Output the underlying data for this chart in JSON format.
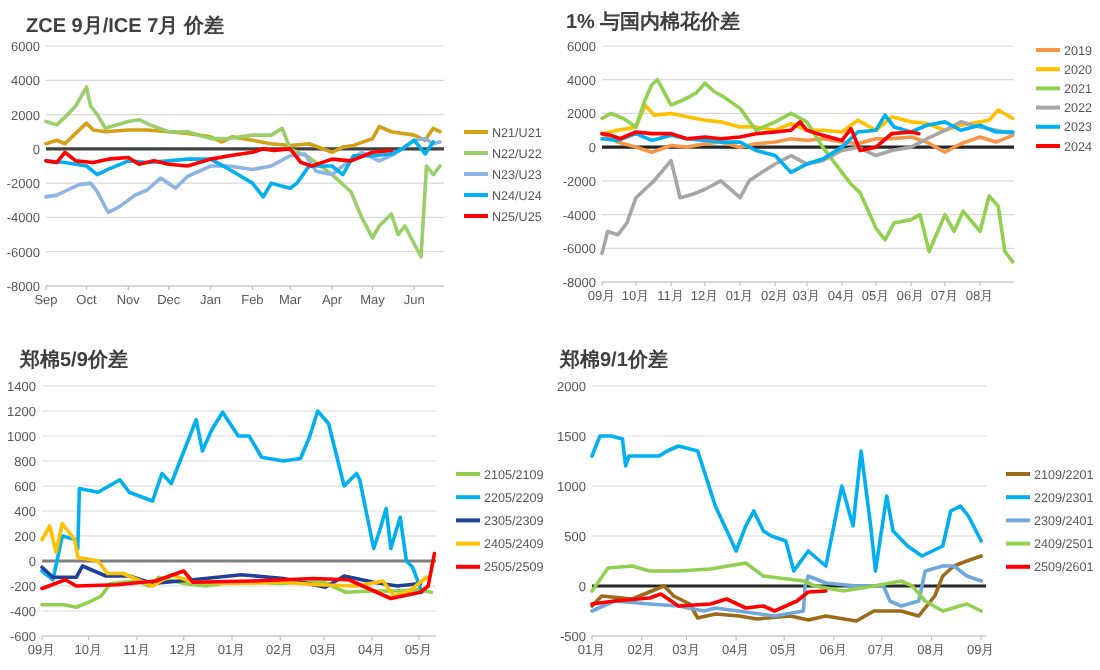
{
  "chart_data": [
    {
      "type": "line",
      "title": "ZCE 9月/ICE 7月 价差",
      "xlim": [
        "2020-09-01",
        "2021-06-23"
      ],
      "xticks": [
        {
          "value": "2020-09-01",
          "label": "Sep"
        },
        {
          "value": "2020-10-01",
          "label": "Oct"
        },
        {
          "value": "2020-11-01",
          "label": "Nov"
        },
        {
          "value": "2020-12-01",
          "label": "Dec"
        },
        {
          "value": "2021-01-01",
          "label": "Jan"
        },
        {
          "value": "2021-02-01",
          "label": "Feb"
        },
        {
          "value": "2021-03-01",
          "label": "Mar"
        },
        {
          "value": "2021-04-01",
          "label": "Apr"
        },
        {
          "value": "2021-05-01",
          "label": "May"
        },
        {
          "value": "2021-06-01",
          "label": "Jun"
        }
      ],
      "ylim": [
        -8000,
        6000
      ],
      "yticks": [
        -8000,
        -6000,
        -4000,
        -2000,
        0,
        2000,
        4000,
        6000
      ],
      "grid": "y",
      "legend": "right",
      "ref_lines": [
        {
          "axis": "y",
          "value": 0,
          "color": "#404040"
        }
      ],
      "series": [
        {
          "name": "N21/U21",
          "color": "#d4a017",
          "x": [
            "2020-09-01",
            "2020-09-09",
            "2020-09-15",
            "2020-09-23",
            "2020-10-01",
            "2020-10-06",
            "2020-10-15",
            "2020-11-01",
            "2020-11-15",
            "2020-12-01",
            "2020-12-15",
            "2021-01-01",
            "2021-01-09",
            "2021-01-17",
            "2021-02-01",
            "2021-02-15",
            "2021-03-01",
            "2021-03-15",
            "2021-04-01",
            "2021-04-09",
            "2021-04-17",
            "2021-05-01",
            "2021-05-06",
            "2021-05-15",
            "2021-06-01",
            "2021-06-09",
            "2021-06-15",
            "2021-06-20"
          ],
          "values": [
            300,
            500,
            300,
            900,
            1500,
            1100,
            1000,
            1100,
            1100,
            1000,
            900,
            700,
            400,
            700,
            500,
            300,
            200,
            300,
            -200,
            100,
            200,
            600,
            1300,
            1000,
            800,
            500,
            1200,
            1000
          ]
        },
        {
          "name": "N22/U22",
          "color": "#9bcf6b",
          "x": [
            "2020-09-01",
            "2020-09-09",
            "2020-09-17",
            "2020-09-23",
            "2020-10-01",
            "2020-10-04",
            "2020-10-09",
            "2020-10-15",
            "2020-11-01",
            "2020-11-09",
            "2020-11-17",
            "2020-12-01",
            "2020-12-15",
            "2021-01-01",
            "2021-01-15",
            "2021-02-01",
            "2021-02-15",
            "2021-02-23",
            "2021-03-01",
            "2021-03-15",
            "2021-04-01",
            "2021-04-15",
            "2021-04-23",
            "2021-05-01",
            "2021-05-06",
            "2021-05-15",
            "2021-05-20",
            "2021-05-25",
            "2021-06-04",
            "2021-06-06",
            "2021-06-10",
            "2021-06-15",
            "2021-06-17",
            "2021-06-20"
          ],
          "values": [
            1600,
            1400,
            2000,
            2500,
            3600,
            2500,
            2000,
            1200,
            1600,
            1700,
            1400,
            1000,
            1000,
            600,
            600,
            800,
            800,
            1200,
            0,
            -500,
            -1500,
            -2500,
            -4000,
            -5200,
            -4500,
            -3800,
            -5000,
            -4500,
            -6000,
            -6300,
            -1000,
            -1500,
            -1300,
            -1000
          ]
        },
        {
          "name": "N23/U23",
          "color": "#8db4e2",
          "x": [
            "2020-09-01",
            "2020-09-09",
            "2020-09-17",
            "2020-09-25",
            "2020-10-04",
            "2020-10-09",
            "2020-10-17",
            "2020-10-25",
            "2020-11-06",
            "2020-11-15",
            "2020-11-25",
            "2020-12-06",
            "2020-12-15",
            "2021-01-01",
            "2021-01-15",
            "2021-02-01",
            "2021-02-15",
            "2021-03-01",
            "2021-03-12",
            "2021-03-20",
            "2021-04-01",
            "2021-04-12",
            "2021-04-23",
            "2021-05-06",
            "2021-05-17",
            "2021-06-01",
            "2021-06-09",
            "2021-06-15",
            "2021-06-20"
          ],
          "values": [
            -2800,
            -2700,
            -2400,
            -2100,
            -2000,
            -2500,
            -3700,
            -3400,
            -2700,
            -2400,
            -1700,
            -2300,
            -1600,
            -1000,
            -1000,
            -1200,
            -1000,
            -400,
            -300,
            -1300,
            -1500,
            -800,
            -200,
            -700,
            -300,
            500,
            600,
            300,
            400
          ]
        },
        {
          "name": "N24/U24",
          "color": "#00b0f0",
          "x": [
            "2020-09-01",
            "2020-09-15",
            "2020-10-01",
            "2020-10-09",
            "2020-10-17",
            "2020-11-01",
            "2020-11-15",
            "2020-12-01",
            "2020-12-15",
            "2021-01-01",
            "2021-01-15",
            "2021-02-01",
            "2021-02-09",
            "2021-02-15",
            "2021-03-01",
            "2021-03-06",
            "2021-03-15",
            "2021-04-01",
            "2021-04-09",
            "2021-04-17",
            "2021-05-01",
            "2021-05-15",
            "2021-05-23",
            "2021-06-01",
            "2021-06-09",
            "2021-06-15"
          ],
          "values": [
            -700,
            -800,
            -1000,
            -1500,
            -1200,
            -700,
            -800,
            -700,
            -600,
            -600,
            -1200,
            -2000,
            -2800,
            -2000,
            -2300,
            -2000,
            -1000,
            -1000,
            -1500,
            -400,
            -400,
            -300,
            0,
            500,
            -300,
            400
          ]
        },
        {
          "name": "N25/U25",
          "color": "#ff0000",
          "x": [
            "2020-09-01",
            "2020-09-09",
            "2020-09-15",
            "2020-09-23",
            "2020-10-06",
            "2020-10-17",
            "2020-11-01",
            "2020-11-09",
            "2020-11-20",
            "2020-12-01",
            "2020-12-15",
            "2021-01-01",
            "2021-01-15",
            "2021-02-01",
            "2021-02-09",
            "2021-02-17",
            "2021-03-01",
            "2021-03-09",
            "2021-03-17",
            "2021-04-01",
            "2021-04-15",
            "2021-05-01",
            "2021-05-15"
          ],
          "values": [
            -700,
            -800,
            -200,
            -700,
            -800,
            -600,
            -500,
            -900,
            -700,
            -900,
            -1000,
            -600,
            -400,
            -200,
            0,
            -100,
            0,
            -800,
            -1000,
            -600,
            -700,
            -200,
            -100
          ]
        }
      ]
    },
    {
      "type": "line",
      "title": "1% 与国内棉花价差",
      "xlim": [
        "2020-09-01",
        "2021-08-31"
      ],
      "xticks": [
        {
          "value": "2020-09-01",
          "label": "09月"
        },
        {
          "value": "2020-10-01",
          "label": "10月"
        },
        {
          "value": "2020-11-01",
          "label": "11月"
        },
        {
          "value": "2020-12-01",
          "label": "12月"
        },
        {
          "value": "2021-01-01",
          "label": "01月"
        },
        {
          "value": "2021-02-01",
          "label": "02月"
        },
        {
          "value": "2021-03-01",
          "label": "03月"
        },
        {
          "value": "2021-04-01",
          "label": "04月"
        },
        {
          "value": "2021-05-01",
          "label": "05月"
        },
        {
          "value": "2021-06-01",
          "label": "06月"
        },
        {
          "value": "2021-07-01",
          "label": "07月"
        },
        {
          "value": "2021-08-01",
          "label": "08月"
        }
      ],
      "ylim": [
        -8000,
        6000
      ],
      "yticks": [
        -8000,
        -6000,
        -4000,
        -2000,
        0,
        2000,
        4000,
        6000
      ],
      "grid": "y",
      "legend": "right",
      "ref_lines": [
        {
          "axis": "y",
          "value": 0,
          "color": "#262626"
        }
      ],
      "series": [
        {
          "name": "2019",
          "color": "#f79646",
          "x": [
            "2020-09-01",
            "2020-09-15",
            "2020-10-01",
            "2020-10-15",
            "2020-11-01",
            "2020-11-15",
            "2020-12-01",
            "2020-12-15",
            "2021-01-01",
            "2021-01-15",
            "2021-02-01",
            "2021-02-15",
            "2021-03-01",
            "2021-03-15",
            "2021-04-01",
            "2021-04-15",
            "2021-05-01",
            "2021-05-15",
            "2021-06-01",
            "2021-06-15",
            "2021-07-01",
            "2021-07-15",
            "2021-08-01",
            "2021-08-15",
            "2021-08-30"
          ],
          "values": [
            800,
            300,
            0,
            -300,
            100,
            0,
            200,
            300,
            0,
            200,
            300,
            500,
            400,
            500,
            300,
            200,
            500,
            500,
            600,
            300,
            -300,
            200,
            600,
            300,
            700
          ]
        },
        {
          "name": "2020",
          "color": "#ffc000",
          "x": [
            "2020-09-01",
            "2020-09-15",
            "2020-10-01",
            "2020-10-09",
            "2020-10-17",
            "2020-11-01",
            "2020-11-15",
            "2020-12-01",
            "2020-12-15",
            "2021-01-01",
            "2021-01-15",
            "2021-02-01",
            "2021-02-15",
            "2021-03-01",
            "2021-03-15",
            "2021-04-01",
            "2021-04-15",
            "2021-05-01",
            "2021-05-15",
            "2021-06-01",
            "2021-06-15",
            "2021-07-01",
            "2021-07-15",
            "2021-08-01",
            "2021-08-09",
            "2021-08-17",
            "2021-08-30"
          ],
          "values": [
            800,
            1000,
            1200,
            2500,
            1900,
            2000,
            1800,
            1600,
            1500,
            1200,
            1200,
            1000,
            1400,
            1000,
            1000,
            900,
            1600,
            1000,
            1800,
            1500,
            1400,
            1000,
            1300,
            1500,
            1600,
            2200,
            1700
          ]
        },
        {
          "name": "2021",
          "color": "#92d050",
          "x": [
            "2020-09-01",
            "2020-09-09",
            "2020-09-20",
            "2020-10-01",
            "2020-10-09",
            "2020-10-15",
            "2020-10-20",
            "2020-11-01",
            "2020-11-12",
            "2020-11-23",
            "2020-12-01",
            "2020-12-09",
            "2020-12-17",
            "2021-01-01",
            "2021-01-15",
            "2021-02-01",
            "2021-02-15",
            "2021-03-01",
            "2021-03-15",
            "2021-04-01",
            "2021-04-09",
            "2021-04-17",
            "2021-05-01",
            "2021-05-09",
            "2021-05-17",
            "2021-06-01",
            "2021-06-09",
            "2021-06-17",
            "2021-07-01",
            "2021-07-09",
            "2021-07-17",
            "2021-08-01",
            "2021-08-09",
            "2021-08-17",
            "2021-08-23",
            "2021-08-30"
          ],
          "values": [
            1700,
            2000,
            1700,
            1200,
            2800,
            3700,
            4000,
            2500,
            2800,
            3200,
            3800,
            3300,
            3000,
            2300,
            1000,
            1500,
            2000,
            1500,
            0,
            -1500,
            -2200,
            -2700,
            -4800,
            -5500,
            -4500,
            -4300,
            -4000,
            -6200,
            -4000,
            -5000,
            -3800,
            -5000,
            -2900,
            -3500,
            -6200,
            -6800
          ]
        },
        {
          "name": "2022",
          "color": "#a6a6a6",
          "x": [
            "2020-09-01",
            "2020-09-06",
            "2020-09-15",
            "2020-09-23",
            "2020-10-01",
            "2020-10-09",
            "2020-10-17",
            "2020-11-01",
            "2020-11-09",
            "2020-11-20",
            "2020-12-01",
            "2020-12-15",
            "2021-01-01",
            "2021-01-09",
            "2021-01-20",
            "2021-02-01",
            "2021-02-15",
            "2021-03-01",
            "2021-03-15",
            "2021-04-01",
            "2021-04-15",
            "2021-05-01",
            "2021-05-15",
            "2021-06-01",
            "2021-06-15",
            "2021-07-01",
            "2021-07-15",
            "2021-08-01",
            "2021-08-15",
            "2021-08-30"
          ],
          "values": [
            -6300,
            -5000,
            -5200,
            -4500,
            -3000,
            -2500,
            -2000,
            -800,
            -3000,
            -2800,
            -2500,
            -2000,
            -3000,
            -2000,
            -1500,
            -1000,
            -500,
            -1000,
            -800,
            -200,
            0,
            -500,
            -200,
            0,
            500,
            1000,
            1500,
            1200,
            1000,
            800
          ]
        },
        {
          "name": "2023",
          "color": "#00b0f0",
          "x": [
            "2020-09-01",
            "2020-09-15",
            "2020-10-01",
            "2020-10-15",
            "2020-11-01",
            "2020-11-15",
            "2020-12-01",
            "2020-12-15",
            "2021-01-01",
            "2021-01-15",
            "2021-02-01",
            "2021-02-15",
            "2021-03-01",
            "2021-03-15",
            "2021-04-01",
            "2021-04-15",
            "2021-05-01",
            "2021-05-09",
            "2021-05-17",
            "2021-06-01",
            "2021-06-15",
            "2021-07-01",
            "2021-07-15",
            "2021-08-01",
            "2021-08-15",
            "2021-08-30"
          ],
          "values": [
            500,
            400,
            800,
            400,
            700,
            500,
            400,
            300,
            300,
            -200,
            -500,
            -1500,
            -1000,
            -700,
            0,
            900,
            1000,
            1900,
            1200,
            900,
            1300,
            1500,
            1000,
            1300,
            900,
            900
          ]
        },
        {
          "name": "2024",
          "color": "#ff0000",
          "x": [
            "2020-09-01",
            "2020-09-09",
            "2020-09-17",
            "2020-10-01",
            "2020-10-15",
            "2020-11-01",
            "2020-11-15",
            "2020-12-01",
            "2020-12-15",
            "2021-01-01",
            "2021-01-15",
            "2021-02-01",
            "2021-02-15",
            "2021-02-23",
            "2021-03-01",
            "2021-03-15",
            "2021-04-01",
            "2021-04-09",
            "2021-04-17",
            "2021-05-01",
            "2021-05-15",
            "2021-06-01",
            "2021-06-08"
          ],
          "values": [
            800,
            700,
            500,
            900,
            800,
            800,
            500,
            600,
            500,
            600,
            800,
            900,
            1000,
            1500,
            1000,
            700,
            400,
            1100,
            -200,
            0,
            800,
            900,
            800
          ]
        }
      ]
    },
    {
      "type": "line",
      "title": "郑棉5/9价差",
      "xlim": [
        "2020-09-01",
        "2021-05-12"
      ],
      "xticks": [
        {
          "value": "2020-09-01",
          "label": "09月"
        },
        {
          "value": "2020-10-01",
          "label": "10月"
        },
        {
          "value": "2020-11-01",
          "label": "11月"
        },
        {
          "value": "2020-12-01",
          "label": "12月"
        },
        {
          "value": "2021-01-01",
          "label": "01月"
        },
        {
          "value": "2021-02-01",
          "label": "02月"
        },
        {
          "value": "2021-03-01",
          "label": "03月"
        },
        {
          "value": "2021-04-01",
          "label": "04月"
        },
        {
          "value": "2021-05-01",
          "label": "05月"
        }
      ],
      "ylim": [
        -600,
        1400
      ],
      "yticks": [
        -600,
        -400,
        -200,
        0,
        200,
        400,
        600,
        800,
        1000,
        1200,
        1400
      ],
      "grid": "y",
      "legend": "right",
      "ref_lines": [
        {
          "axis": "y",
          "value": 0,
          "color": "#7f7f7f"
        }
      ],
      "series": [
        {
          "name": "2105/2109",
          "color": "#92d050",
          "x": [
            "2020-09-01",
            "2020-09-15",
            "2020-09-23",
            "2020-10-01",
            "2020-10-09",
            "2020-10-15",
            "2020-11-01",
            "2020-11-09",
            "2020-11-15",
            "2020-12-01",
            "2020-12-15",
            "2021-01-01",
            "2021-01-15",
            "2021-02-01",
            "2021-02-15",
            "2021-03-01",
            "2021-03-15",
            "2021-04-01",
            "2021-04-15",
            "2021-05-01",
            "2021-05-09"
          ],
          "values": [
            -350,
            -350,
            -370,
            -330,
            -280,
            -180,
            -160,
            -200,
            -130,
            -180,
            -200,
            -170,
            -170,
            -180,
            -170,
            -170,
            -250,
            -240,
            -240,
            -230,
            -250
          ]
        },
        {
          "name": "2205/2209",
          "color": "#00b0f0",
          "x": [
            "2020-09-01",
            "2020-09-08",
            "2020-09-14",
            "2020-09-23",
            "2020-09-24",
            "2020-09-25",
            "2020-10-07",
            "2020-10-21",
            "2020-10-27",
            "2020-11-11",
            "2020-11-17",
            "2020-11-23",
            "2020-12-09",
            "2020-12-13",
            "2020-12-19",
            "2020-12-26",
            "2021-01-05",
            "2021-01-12",
            "2021-01-20",
            "2021-02-03",
            "2021-02-14",
            "2021-02-20",
            "2021-02-25",
            "2021-03-04",
            "2021-03-09",
            "2021-03-14",
            "2021-03-22",
            "2021-03-24",
            "2021-04-02",
            "2021-04-06",
            "2021-04-10",
            "2021-04-13",
            "2021-04-19",
            "2021-04-23",
            "2021-04-27",
            "2021-05-03"
          ],
          "values": [
            -80,
            -150,
            200,
            170,
            100,
            580,
            550,
            650,
            550,
            480,
            700,
            620,
            1130,
            880,
            1050,
            1190,
            1000,
            1000,
            830,
            800,
            820,
            1000,
            1200,
            1100,
            850,
            600,
            700,
            650,
            100,
            250,
            420,
            100,
            350,
            0,
            -50,
            -250
          ]
        },
        {
          "name": "2305/2309",
          "color": "#1f3f99",
          "x": [
            "2020-09-01",
            "2020-09-08",
            "2020-09-23",
            "2020-09-27",
            "2020-10-12",
            "2020-10-27",
            "2020-11-11",
            "2020-12-07",
            "2021-01-07",
            "2021-02-03",
            "2021-03-02",
            "2021-03-14",
            "2021-04-02",
            "2021-04-17",
            "2021-05-02"
          ],
          "values": [
            -50,
            -130,
            -130,
            -40,
            -120,
            -120,
            -180,
            -150,
            -110,
            -140,
            -210,
            -120,
            -170,
            -200,
            -180
          ]
        },
        {
          "name": "2405/2409",
          "color": "#ffc000",
          "x": [
            "2020-09-01",
            "2020-09-06",
            "2020-09-10",
            "2020-09-14",
            "2020-09-22",
            "2020-09-24",
            "2020-10-07",
            "2020-10-13",
            "2020-10-23",
            "2020-11-11",
            "2020-11-23",
            "2020-12-07",
            "2021-01-03",
            "2021-02-03",
            "2021-02-25",
            "2021-03-22",
            "2021-04-08",
            "2021-04-15",
            "2021-04-25",
            "2021-05-06"
          ],
          "values": [
            170,
            280,
            70,
            300,
            170,
            30,
            0,
            -100,
            -100,
            -200,
            -110,
            -170,
            -180,
            -170,
            -190,
            -200,
            -160,
            -280,
            -240,
            -130
          ]
        },
        {
          "name": "2505/2509",
          "color": "#ff0000",
          "x": [
            "2020-09-01",
            "2020-09-16",
            "2020-09-23",
            "2020-10-19",
            "2020-11-13",
            "2020-12-01",
            "2020-12-07",
            "2021-01-14",
            "2021-02-22",
            "2021-03-17",
            "2021-04-04",
            "2021-04-13",
            "2021-05-02",
            "2021-05-07",
            "2021-05-11"
          ],
          "values": [
            -220,
            -150,
            -200,
            -190,
            -160,
            -80,
            -170,
            -160,
            -140,
            -150,
            -250,
            -300,
            -250,
            -200,
            60
          ]
        }
      ]
    },
    {
      "type": "line",
      "title": "郑棉9/1价差",
      "xlim": [
        "2021-01-01",
        "2021-09-04"
      ],
      "xticks": [
        {
          "value": "2021-01-01",
          "label": "01月"
        },
        {
          "value": "2021-02-01",
          "label": "02月"
        },
        {
          "value": "2021-03-01",
          "label": "03月"
        },
        {
          "value": "2021-04-01",
          "label": "04月"
        },
        {
          "value": "2021-05-01",
          "label": "05月"
        },
        {
          "value": "2021-06-01",
          "label": "06月"
        },
        {
          "value": "2021-07-01",
          "label": "07月"
        },
        {
          "value": "2021-08-01",
          "label": "08月"
        },
        {
          "value": "2021-09-01",
          "label": "09月"
        }
      ],
      "ylim": [
        -500,
        2000
      ],
      "yticks": [
        -500,
        0,
        500,
        1000,
        1500,
        2000
      ],
      "grid": "y",
      "legend": "right",
      "ref_lines": [
        {
          "axis": "y",
          "value": 0,
          "color": "#262626"
        }
      ],
      "series": [
        {
          "name": "2109/2201",
          "color": "#9c6b1a",
          "x": [
            "2021-01-01",
            "2021-01-07",
            "2021-01-26",
            "2021-02-15",
            "2021-02-21",
            "2021-03-03",
            "2021-03-08",
            "2021-03-19",
            "2021-04-03",
            "2021-04-14",
            "2021-05-05",
            "2021-05-16",
            "2021-05-27",
            "2021-06-15",
            "2021-06-26",
            "2021-07-13",
            "2021-07-24",
            "2021-08-03",
            "2021-08-08",
            "2021-08-15",
            "2021-08-23",
            "2021-09-01"
          ],
          "values": [
            -200,
            -100,
            -130,
            0,
            -100,
            -180,
            -320,
            -280,
            -300,
            -330,
            -300,
            -340,
            -300,
            -350,
            -250,
            -250,
            -300,
            -100,
            100,
            200,
            250,
            300
          ]
        },
        {
          "name": "2209/2301",
          "color": "#00b0f0",
          "x": [
            "2021-01-01",
            "2021-01-06",
            "2021-01-13",
            "2021-01-20",
            "2021-01-22",
            "2021-01-24",
            "2021-02-12",
            "2021-02-17",
            "2021-02-24",
            "2021-03-08",
            "2021-03-12",
            "2021-03-19",
            "2021-04-01",
            "2021-04-07",
            "2021-04-12",
            "2021-04-18",
            "2021-04-23",
            "2021-05-02",
            "2021-05-07",
            "2021-05-16",
            "2021-05-27",
            "2021-06-06",
            "2021-06-13",
            "2021-06-18",
            "2021-06-24",
            "2021-06-27",
            "2021-07-04",
            "2021-07-08",
            "2021-07-17",
            "2021-07-26",
            "2021-08-08",
            "2021-08-13",
            "2021-08-19",
            "2021-08-24",
            "2021-09-01"
          ],
          "values": [
            1300,
            1500,
            1500,
            1470,
            1200,
            1300,
            1300,
            1350,
            1400,
            1350,
            1150,
            800,
            350,
            600,
            750,
            550,
            500,
            450,
            150,
            350,
            200,
            1000,
            600,
            1350,
            600,
            150,
            900,
            550,
            400,
            300,
            400,
            750,
            800,
            700,
            450
          ]
        },
        {
          "name": "2309/2401",
          "color": "#6fa8dc",
          "x": [
            "2021-01-01",
            "2021-01-15",
            "2021-02-06",
            "2021-02-24",
            "2021-03-12",
            "2021-03-19",
            "2021-04-07",
            "2021-04-25",
            "2021-05-13",
            "2021-05-14",
            "2021-05-16",
            "2021-05-27",
            "2021-06-15",
            "2021-07-02",
            "2021-07-06",
            "2021-07-13",
            "2021-07-24",
            "2021-07-28",
            "2021-08-08",
            "2021-08-15",
            "2021-08-23",
            "2021-09-01"
          ],
          "values": [
            -250,
            -150,
            -180,
            -200,
            -250,
            -220,
            -260,
            -300,
            -250,
            0,
            100,
            30,
            0,
            0,
            -150,
            -200,
            -150,
            150,
            200,
            200,
            100,
            50
          ]
        },
        {
          "name": "2409/2501",
          "color": "#92d050",
          "x": [
            "2021-01-01",
            "2021-01-11",
            "2021-01-26",
            "2021-02-06",
            "2021-02-24",
            "2021-03-16",
            "2021-04-07",
            "2021-04-18",
            "2021-05-13",
            "2021-05-20",
            "2021-06-07",
            "2021-06-26",
            "2021-07-13",
            "2021-07-20",
            "2021-07-28",
            "2021-08-08",
            "2021-08-23",
            "2021-09-01"
          ],
          "values": [
            -50,
            180,
            200,
            150,
            150,
            170,
            230,
            100,
            50,
            0,
            -50,
            0,
            50,
            0,
            -150,
            -250,
            -180,
            -250
          ]
        },
        {
          "name": "2509/2601",
          "color": "#ff0000",
          "x": [
            "2021-01-01",
            "2021-01-15",
            "2021-02-06",
            "2021-02-13",
            "2021-02-24",
            "2021-03-16",
            "2021-03-26",
            "2021-04-07",
            "2021-04-18",
            "2021-04-25",
            "2021-05-09",
            "2021-05-16",
            "2021-05-27"
          ],
          "values": [
            -180,
            -150,
            -120,
            -80,
            -200,
            -180,
            -130,
            -220,
            -200,
            -250,
            -150,
            -60,
            -50
          ]
        }
      ]
    }
  ]
}
